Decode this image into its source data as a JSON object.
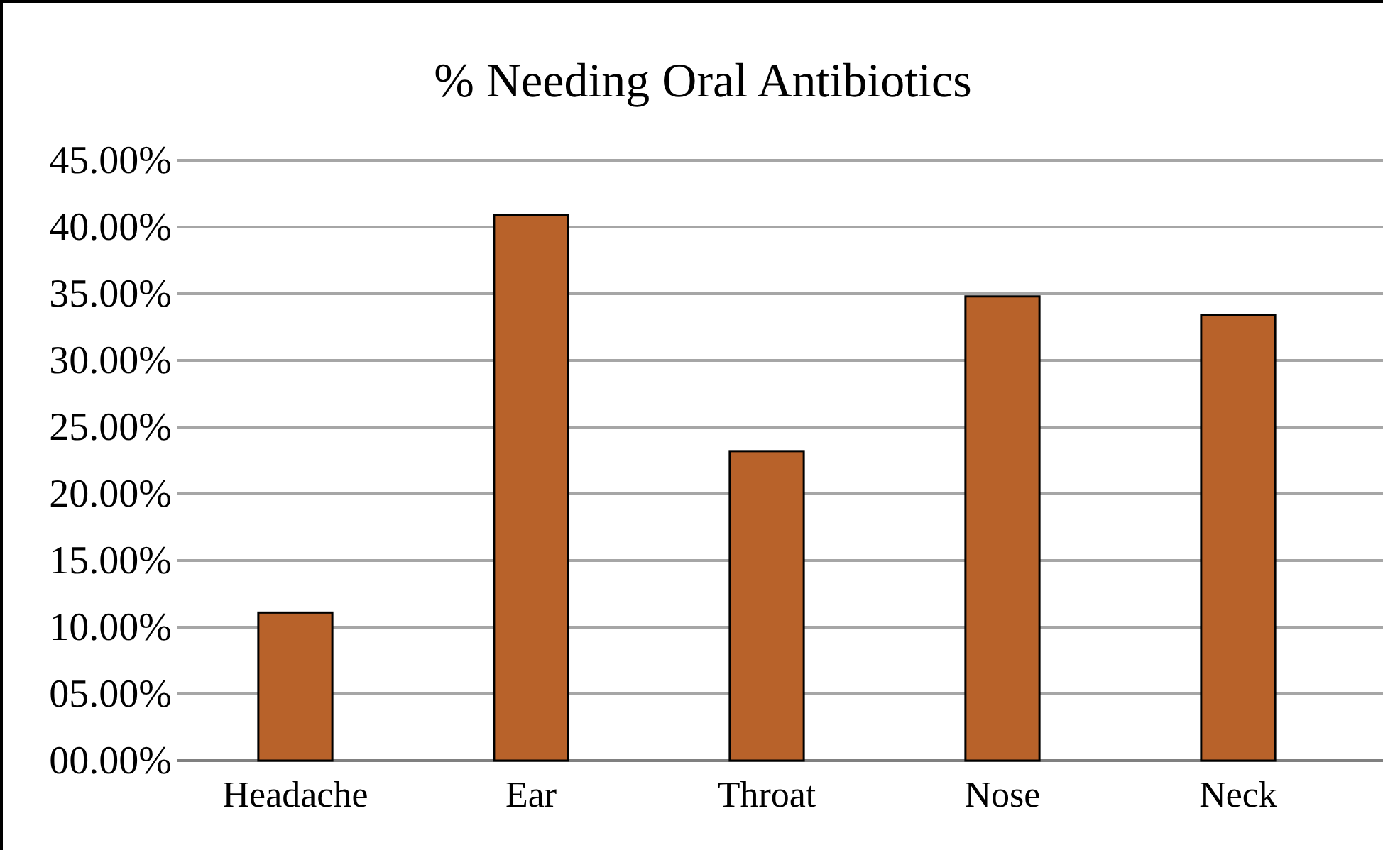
{
  "chart_data": {
    "type": "bar",
    "title": "% Needing Oral Antibiotics",
    "categories": [
      "Headache",
      "Ear",
      "Throat",
      "Nose",
      "Neck"
    ],
    "values": [
      11.1,
      40.9,
      23.2,
      34.8,
      33.4
    ],
    "color": "#b8622a",
    "ylim": [
      0,
      45
    ],
    "yticks": [
      {
        "value": 0,
        "label": "00.00%"
      },
      {
        "value": 5,
        "label": "05.00%"
      },
      {
        "value": 10,
        "label": "10.00%"
      },
      {
        "value": 15,
        "label": "15.00%"
      },
      {
        "value": 20,
        "label": "20.00%"
      },
      {
        "value": 25,
        "label": "25.00%"
      },
      {
        "value": 30,
        "label": "30.00%"
      },
      {
        "value": 35,
        "label": "35.00%"
      },
      {
        "value": 40,
        "label": "40.00%"
      },
      {
        "value": 45,
        "label": "45.00%"
      }
    ],
    "grid": "y"
  }
}
